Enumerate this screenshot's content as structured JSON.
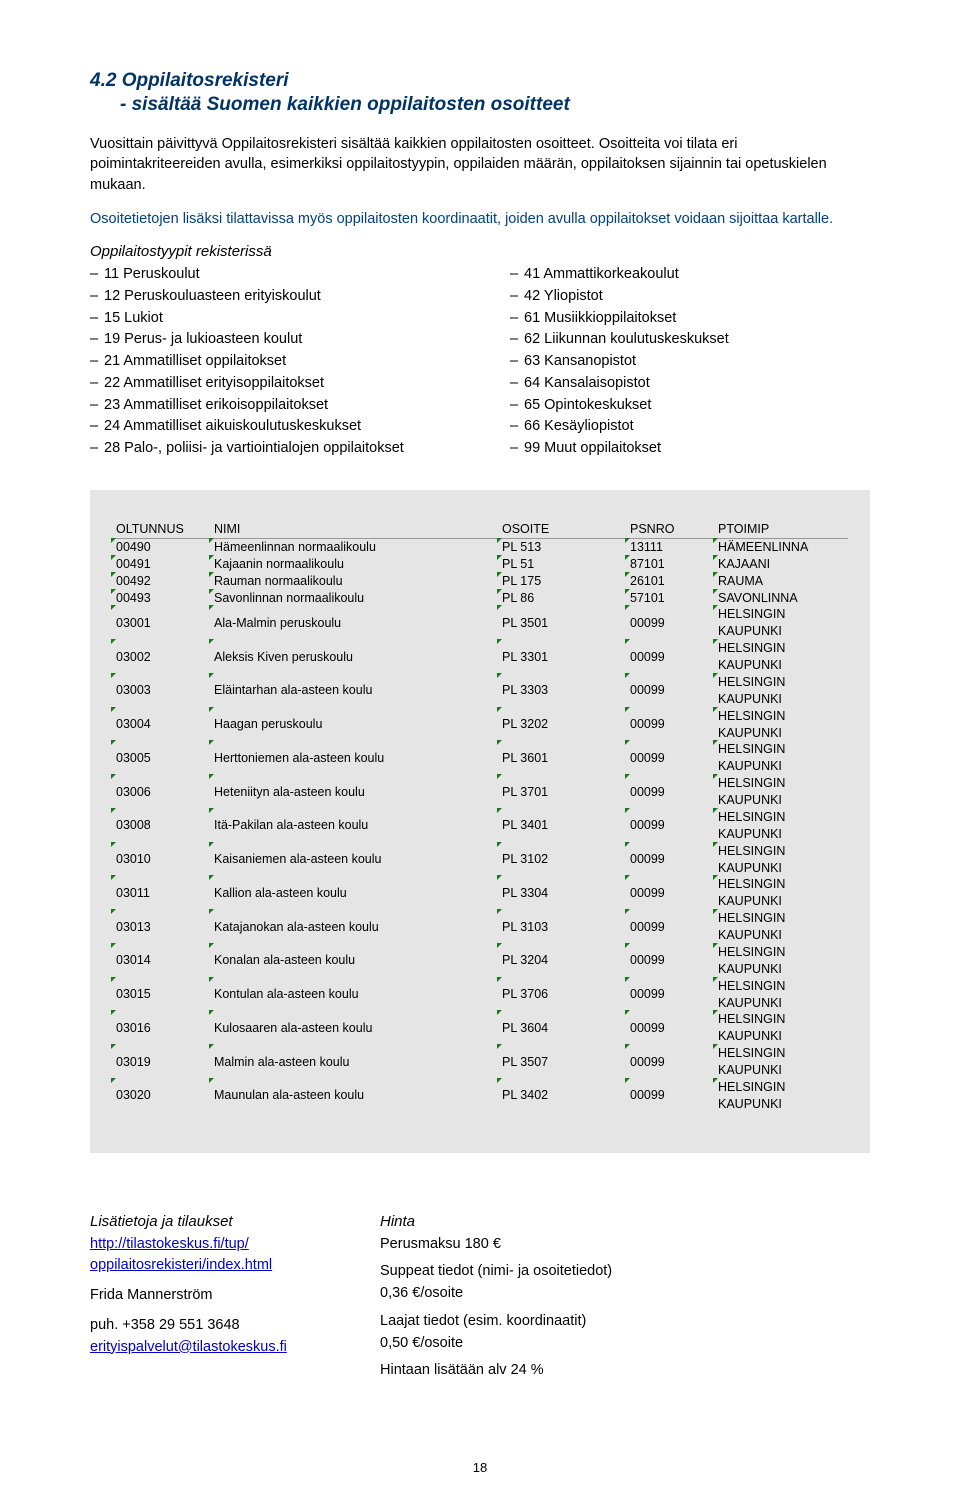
{
  "heading": "4.2 Oppilaitosrekisteri",
  "subheading": "- sisältää Suomen kaikkien oppilaitosten osoitteet",
  "para1": "Vuosittain päivittyvä Oppilaitosrekisteri sisältää kaikkien oppilaitosten osoitteet. Osoitteita voi tilata eri poimintakriteereiden avulla, esimerkiksi oppilaitostyypin, oppilaiden määrän, oppilaitoksen sijainnin tai opetuskielen mukaan.",
  "para2": "Osoitetietojen lisäksi tilattavissa myös oppilaitosten koordinaatit, joiden avulla oppilaitokset voidaan sijoittaa kartalle.",
  "list_title": "Oppilaitostyypit rekisterissä",
  "left_list": [
    "11 Peruskoulut",
    "12 Peruskouluasteen erityiskoulut",
    "15 Lukiot",
    "19 Perus- ja lukioasteen koulut",
    "21 Ammatilliset oppilaitokset",
    "22 Ammatilliset erityisoppilaitokset",
    "23 Ammatilliset erikoisoppilaitokset",
    "24 Ammatilliset aikuiskoulutuskeskukset",
    "28 Palo-, poliisi- ja vartiointialojen oppilaitokset"
  ],
  "right_list": [
    "41 Ammattikorkeakoulut",
    "42 Yliopistot",
    "61 Musiikkioppilaitokset",
    "62 Liikunnan koulutuskeskukset",
    "63 Kansanopistot",
    "64 Kansalaisopistot",
    "65 Opintokeskukset",
    "66 Kesäyliopistot",
    "99 Muut oppilaitokset"
  ],
  "table": {
    "columns": [
      "OLTUNNUS",
      "NIMI",
      "OSOITE",
      "PSNRO",
      "PTOIMIP"
    ],
    "rows": [
      [
        "00490",
        "Hämeenlinnan normaalikoulu",
        "PL 513",
        "13111",
        "HÄMEENLINNA"
      ],
      [
        "00491",
        "Kajaanin normaalikoulu",
        "PL 51",
        "87101",
        "KAJAANI"
      ],
      [
        "00492",
        "Rauman normaalikoulu",
        "PL 175",
        "26101",
        "RAUMA"
      ],
      [
        "00493",
        "Savonlinnan normaalikoulu",
        "PL 86",
        "57101",
        "SAVONLINNA"
      ],
      [
        "03001",
        "Ala-Malmin peruskoulu",
        "PL 3501",
        "00099",
        "HELSINGIN KAUPUNKI"
      ],
      [
        "03002",
        "Aleksis Kiven peruskoulu",
        "PL 3301",
        "00099",
        "HELSINGIN KAUPUNKI"
      ],
      [
        "03003",
        "Eläintarhan ala-asteen koulu",
        "PL 3303",
        "00099",
        "HELSINGIN KAUPUNKI"
      ],
      [
        "03004",
        "Haagan peruskoulu",
        "PL 3202",
        "00099",
        "HELSINGIN KAUPUNKI"
      ],
      [
        "03005",
        "Herttoniemen ala-asteen koulu",
        "PL 3601",
        "00099",
        "HELSINGIN KAUPUNKI"
      ],
      [
        "03006",
        "Heteniityn ala-asteen koulu",
        "PL 3701",
        "00099",
        "HELSINGIN KAUPUNKI"
      ],
      [
        "03008",
        "Itä-Pakilan ala-asteen koulu",
        "PL 3401",
        "00099",
        "HELSINGIN KAUPUNKI"
      ],
      [
        "03010",
        "Kaisaniemen ala-asteen koulu",
        "PL 3102",
        "00099",
        "HELSINGIN KAUPUNKI"
      ],
      [
        "03011",
        "Kallion ala-asteen koulu",
        "PL 3304",
        "00099",
        "HELSINGIN KAUPUNKI"
      ],
      [
        "03013",
        "Katajanokan ala-asteen koulu",
        "PL 3103",
        "00099",
        "HELSINGIN KAUPUNKI"
      ],
      [
        "03014",
        "Konalan ala-asteen koulu",
        "PL 3204",
        "00099",
        "HELSINGIN KAUPUNKI"
      ],
      [
        "03015",
        "Kontulan ala-asteen koulu",
        "PL 3706",
        "00099",
        "HELSINGIN KAUPUNKI"
      ],
      [
        "03016",
        "Kulosaaren ala-asteen koulu",
        "PL 3604",
        "00099",
        "HELSINGIN KAUPUNKI"
      ],
      [
        "03019",
        "Malmin ala-asteen koulu",
        "PL 3507",
        "00099",
        "HELSINGIN KAUPUNKI"
      ],
      [
        "03020",
        "Maunulan ala-asteen koulu",
        "PL 3402",
        "00099",
        "HELSINGIN KAUPUNKI"
      ]
    ]
  },
  "bottom_left": {
    "title": "Lisätietoja ja tilaukset",
    "link1": "http://tilastokeskus.fi/tup/",
    "link2": "oppilaitosrekisteri/index.html",
    "name": "Frida Mannerström",
    "phone": "puh. +358 29 551 3648",
    "email": "erityispalvelut@tilastokeskus.fi"
  },
  "bottom_right": {
    "title": "Hinta",
    "l1": "Perusmaksu 180 €",
    "l2": "Suppeat tiedot (nimi- ja osoitetiedot)",
    "l3": "0,36 €/osoite",
    "l4": "Laajat tiedot (esim. koordinaatit)",
    "l5": "0,50 €/osoite",
    "l6": "Hintaan lisätään alv 24 %"
  },
  "page_number": "18"
}
